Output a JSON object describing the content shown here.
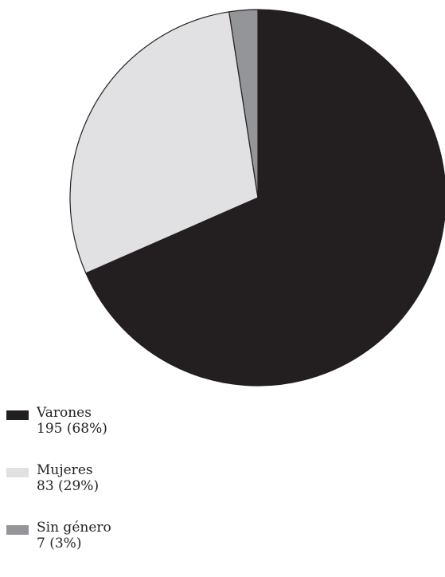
{
  "chart_data": {
    "type": "pie",
    "title": "",
    "slices": [
      {
        "label": "Varones",
        "value": 195,
        "percent_label": "195 (68%)",
        "color": "#231f20"
      },
      {
        "label": "Mujeres",
        "value": 83,
        "percent_label": "83 (29%)",
        "color": "#e1e1e3"
      },
      {
        "label": "Sin género",
        "value": 7,
        "percent_label": "7 (3%)",
        "color": "#939598"
      }
    ],
    "legend_position": "bottom-left",
    "start_angle": "top",
    "direction": "clockwise"
  }
}
